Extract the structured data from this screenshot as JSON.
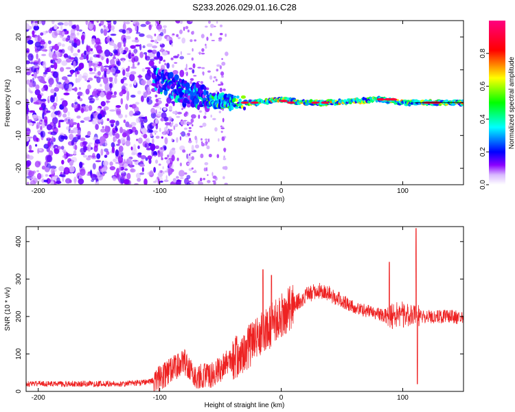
{
  "title": "S233.2026.029.01.16.C28",
  "chart_data": [
    {
      "type": "heatmap",
      "xlabel": "Height of straight line (km)",
      "ylabel": "Frequency (Hz)",
      "xlim": [
        -210,
        150
      ],
      "ylim": [
        -25,
        25
      ],
      "x_ticks": [
        -200,
        -100,
        0,
        100
      ],
      "y_ticks": [
        -20,
        -10,
        0,
        10,
        20
      ],
      "grid": false,
      "colorbar": {
        "label": "Normalized spectral amplitude",
        "range": [
          0,
          1
        ],
        "ticks": [
          "0.0",
          "0.2",
          "0.4",
          "0.6",
          "0.8"
        ],
        "colors": [
          "#ffffff",
          "#8b00ff",
          "#0000ff",
          "#00ffff",
          "#00ff00",
          "#ffff00",
          "#ff0000",
          "#ff0080"
        ]
      },
      "ridge": {
        "description": "dominant frequency track",
        "x": [
          -100,
          -80,
          -60,
          -40,
          -20,
          0,
          20,
          40,
          60,
          80,
          100,
          120,
          150
        ],
        "y": [
          7,
          3,
          1,
          0,
          0,
          1,
          0,
          0,
          0.5,
          1,
          0,
          0,
          0
        ]
      }
    },
    {
      "type": "line",
      "xlabel": "Height of straight line (km)",
      "ylabel": "SNR (10 * v/v)",
      "xlim": [
        -210,
        150
      ],
      "ylim": [
        0,
        440
      ],
      "x_ticks": [
        -200,
        -100,
        0,
        100
      ],
      "y_ticks": [
        0,
        100,
        200,
        300,
        400
      ],
      "grid": false,
      "series": [
        {
          "name": "SNR",
          "color": "#ee2222",
          "x": [
            -210,
            -190,
            -170,
            -150,
            -130,
            -110,
            -100,
            -90,
            -80,
            -75,
            -70,
            -60,
            -50,
            -40,
            -30,
            -20,
            -10,
            0,
            10,
            20,
            30,
            40,
            50,
            60,
            70,
            80,
            90,
            100,
            110,
            120,
            130,
            140,
            150
          ],
          "y": [
            20,
            20,
            20,
            20,
            20,
            25,
            35,
            60,
            80,
            60,
            40,
            40,
            60,
            90,
            110,
            140,
            170,
            200,
            230,
            255,
            270,
            260,
            240,
            225,
            215,
            205,
            200,
            205,
            200,
            200,
            200,
            200,
            195
          ]
        }
      ],
      "spikes": [
        {
          "x": -15,
          "y": 325
        },
        {
          "x": -8,
          "y": 310
        },
        {
          "x": 89,
          "y": 345
        },
        {
          "x": 111,
          "y": 435
        },
        {
          "x": 112,
          "y": 20
        }
      ]
    }
  ]
}
